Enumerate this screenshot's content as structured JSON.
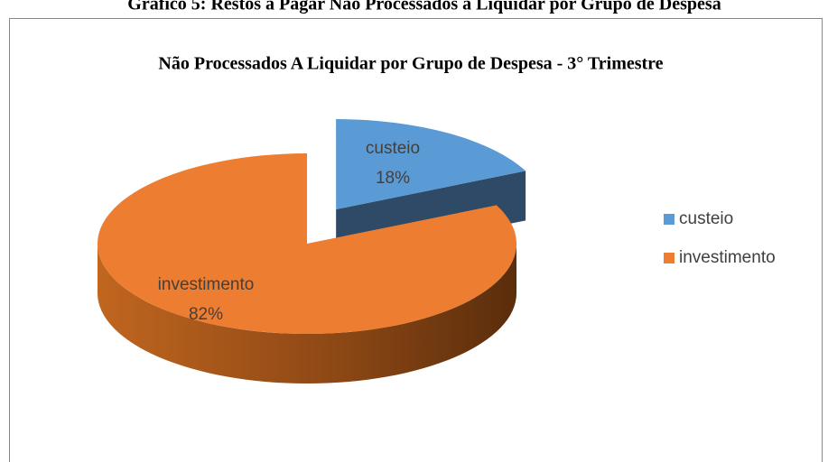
{
  "caption": "Gráfico 5: Restos a Pagar Não Processados a Liquidar por Grupo de Despesa",
  "chart_data": {
    "type": "pie",
    "title": "Não Processados A Liquidar por Grupo de Despesa - 3° Trimestre",
    "categories": [
      "custeio",
      "investimento"
    ],
    "values": [
      18,
      82
    ],
    "value_labels": [
      "18%",
      "82%"
    ],
    "colors": [
      "#5b9bd5",
      "#ed7d31"
    ],
    "legend": "right",
    "explode": [
      true,
      false
    ]
  }
}
